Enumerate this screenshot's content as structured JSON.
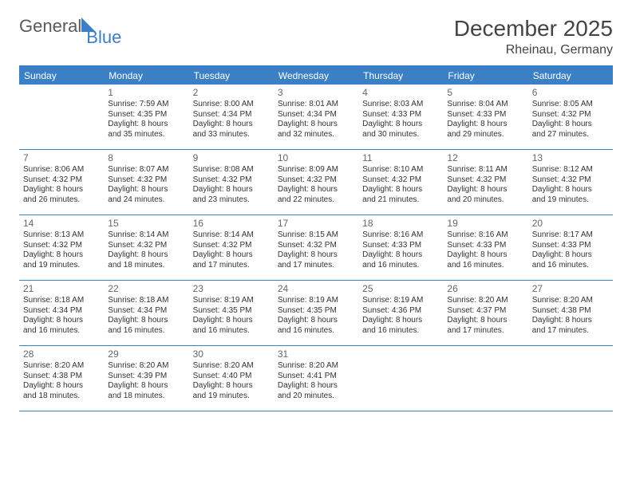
{
  "logo": {
    "part1": "General",
    "part2": "Blue"
  },
  "title": "December 2025",
  "location": "Rheinau, Germany",
  "colors": {
    "brand_blue": "#3b7fc4",
    "text_gray": "#5a5a5a",
    "body_text": "#333333",
    "daynum_gray": "#666666",
    "background": "#ffffff"
  },
  "weekdays": [
    "Sunday",
    "Monday",
    "Tuesday",
    "Wednesday",
    "Thursday",
    "Friday",
    "Saturday"
  ],
  "weeks": [
    [
      {
        "num": "",
        "sunrise": "",
        "sunset": "",
        "day1": "",
        "day2": ""
      },
      {
        "num": "1",
        "sunrise": "Sunrise: 7:59 AM",
        "sunset": "Sunset: 4:35 PM",
        "day1": "Daylight: 8 hours",
        "day2": "and 35 minutes."
      },
      {
        "num": "2",
        "sunrise": "Sunrise: 8:00 AM",
        "sunset": "Sunset: 4:34 PM",
        "day1": "Daylight: 8 hours",
        "day2": "and 33 minutes."
      },
      {
        "num": "3",
        "sunrise": "Sunrise: 8:01 AM",
        "sunset": "Sunset: 4:34 PM",
        "day1": "Daylight: 8 hours",
        "day2": "and 32 minutes."
      },
      {
        "num": "4",
        "sunrise": "Sunrise: 8:03 AM",
        "sunset": "Sunset: 4:33 PM",
        "day1": "Daylight: 8 hours",
        "day2": "and 30 minutes."
      },
      {
        "num": "5",
        "sunrise": "Sunrise: 8:04 AM",
        "sunset": "Sunset: 4:33 PM",
        "day1": "Daylight: 8 hours",
        "day2": "and 29 minutes."
      },
      {
        "num": "6",
        "sunrise": "Sunrise: 8:05 AM",
        "sunset": "Sunset: 4:32 PM",
        "day1": "Daylight: 8 hours",
        "day2": "and 27 minutes."
      }
    ],
    [
      {
        "num": "7",
        "sunrise": "Sunrise: 8:06 AM",
        "sunset": "Sunset: 4:32 PM",
        "day1": "Daylight: 8 hours",
        "day2": "and 26 minutes."
      },
      {
        "num": "8",
        "sunrise": "Sunrise: 8:07 AM",
        "sunset": "Sunset: 4:32 PM",
        "day1": "Daylight: 8 hours",
        "day2": "and 24 minutes."
      },
      {
        "num": "9",
        "sunrise": "Sunrise: 8:08 AM",
        "sunset": "Sunset: 4:32 PM",
        "day1": "Daylight: 8 hours",
        "day2": "and 23 minutes."
      },
      {
        "num": "10",
        "sunrise": "Sunrise: 8:09 AM",
        "sunset": "Sunset: 4:32 PM",
        "day1": "Daylight: 8 hours",
        "day2": "and 22 minutes."
      },
      {
        "num": "11",
        "sunrise": "Sunrise: 8:10 AM",
        "sunset": "Sunset: 4:32 PM",
        "day1": "Daylight: 8 hours",
        "day2": "and 21 minutes."
      },
      {
        "num": "12",
        "sunrise": "Sunrise: 8:11 AM",
        "sunset": "Sunset: 4:32 PM",
        "day1": "Daylight: 8 hours",
        "day2": "and 20 minutes."
      },
      {
        "num": "13",
        "sunrise": "Sunrise: 8:12 AM",
        "sunset": "Sunset: 4:32 PM",
        "day1": "Daylight: 8 hours",
        "day2": "and 19 minutes."
      }
    ],
    [
      {
        "num": "14",
        "sunrise": "Sunrise: 8:13 AM",
        "sunset": "Sunset: 4:32 PM",
        "day1": "Daylight: 8 hours",
        "day2": "and 19 minutes."
      },
      {
        "num": "15",
        "sunrise": "Sunrise: 8:14 AM",
        "sunset": "Sunset: 4:32 PM",
        "day1": "Daylight: 8 hours",
        "day2": "and 18 minutes."
      },
      {
        "num": "16",
        "sunrise": "Sunrise: 8:14 AM",
        "sunset": "Sunset: 4:32 PM",
        "day1": "Daylight: 8 hours",
        "day2": "and 17 minutes."
      },
      {
        "num": "17",
        "sunrise": "Sunrise: 8:15 AM",
        "sunset": "Sunset: 4:32 PM",
        "day1": "Daylight: 8 hours",
        "day2": "and 17 minutes."
      },
      {
        "num": "18",
        "sunrise": "Sunrise: 8:16 AM",
        "sunset": "Sunset: 4:33 PM",
        "day1": "Daylight: 8 hours",
        "day2": "and 16 minutes."
      },
      {
        "num": "19",
        "sunrise": "Sunrise: 8:16 AM",
        "sunset": "Sunset: 4:33 PM",
        "day1": "Daylight: 8 hours",
        "day2": "and 16 minutes."
      },
      {
        "num": "20",
        "sunrise": "Sunrise: 8:17 AM",
        "sunset": "Sunset: 4:33 PM",
        "day1": "Daylight: 8 hours",
        "day2": "and 16 minutes."
      }
    ],
    [
      {
        "num": "21",
        "sunrise": "Sunrise: 8:18 AM",
        "sunset": "Sunset: 4:34 PM",
        "day1": "Daylight: 8 hours",
        "day2": "and 16 minutes."
      },
      {
        "num": "22",
        "sunrise": "Sunrise: 8:18 AM",
        "sunset": "Sunset: 4:34 PM",
        "day1": "Daylight: 8 hours",
        "day2": "and 16 minutes."
      },
      {
        "num": "23",
        "sunrise": "Sunrise: 8:19 AM",
        "sunset": "Sunset: 4:35 PM",
        "day1": "Daylight: 8 hours",
        "day2": "and 16 minutes."
      },
      {
        "num": "24",
        "sunrise": "Sunrise: 8:19 AM",
        "sunset": "Sunset: 4:35 PM",
        "day1": "Daylight: 8 hours",
        "day2": "and 16 minutes."
      },
      {
        "num": "25",
        "sunrise": "Sunrise: 8:19 AM",
        "sunset": "Sunset: 4:36 PM",
        "day1": "Daylight: 8 hours",
        "day2": "and 16 minutes."
      },
      {
        "num": "26",
        "sunrise": "Sunrise: 8:20 AM",
        "sunset": "Sunset: 4:37 PM",
        "day1": "Daylight: 8 hours",
        "day2": "and 17 minutes."
      },
      {
        "num": "27",
        "sunrise": "Sunrise: 8:20 AM",
        "sunset": "Sunset: 4:38 PM",
        "day1": "Daylight: 8 hours",
        "day2": "and 17 minutes."
      }
    ],
    [
      {
        "num": "28",
        "sunrise": "Sunrise: 8:20 AM",
        "sunset": "Sunset: 4:38 PM",
        "day1": "Daylight: 8 hours",
        "day2": "and 18 minutes."
      },
      {
        "num": "29",
        "sunrise": "Sunrise: 8:20 AM",
        "sunset": "Sunset: 4:39 PM",
        "day1": "Daylight: 8 hours",
        "day2": "and 18 minutes."
      },
      {
        "num": "30",
        "sunrise": "Sunrise: 8:20 AM",
        "sunset": "Sunset: 4:40 PM",
        "day1": "Daylight: 8 hours",
        "day2": "and 19 minutes."
      },
      {
        "num": "31",
        "sunrise": "Sunrise: 8:20 AM",
        "sunset": "Sunset: 4:41 PM",
        "day1": "Daylight: 8 hours",
        "day2": "and 20 minutes."
      },
      {
        "num": "",
        "sunrise": "",
        "sunset": "",
        "day1": "",
        "day2": ""
      },
      {
        "num": "",
        "sunrise": "",
        "sunset": "",
        "day1": "",
        "day2": ""
      },
      {
        "num": "",
        "sunrise": "",
        "sunset": "",
        "day1": "",
        "day2": ""
      }
    ]
  ]
}
